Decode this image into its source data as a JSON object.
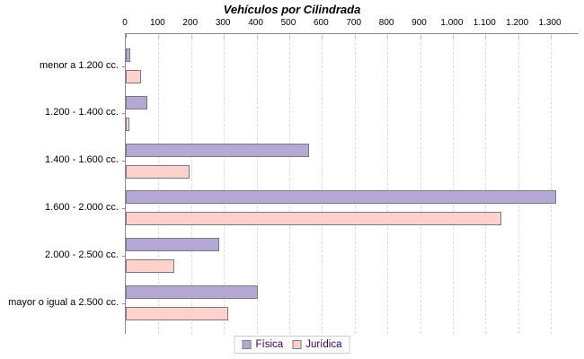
{
  "title": "Vehículos por Cilindrada",
  "chart_data": {
    "type": "bar",
    "orientation": "horizontal",
    "title": "Vehículos por Cilindrada",
    "categories": [
      "menor a 1.200 cc.",
      "1.200 - 1.400 cc.",
      "1.400 - 1.600 cc.",
      "1.600 - 2.000 cc.",
      "2.000 - 2.500 cc.",
      "mayor o igual a 2.500 cc."
    ],
    "series": [
      {
        "name": "Física",
        "color": "#b3a9d4",
        "values": [
          15,
          65,
          560,
          1315,
          285,
          405
        ]
      },
      {
        "name": "Jurídica",
        "color": "#ffd1cc",
        "values": [
          48,
          12,
          195,
          1150,
          148,
          312
        ]
      }
    ],
    "x_tick_labels": [
      "0",
      "100",
      "200",
      "300",
      "400",
      "500",
      "600",
      "700",
      "800",
      "900",
      "1.000",
      "1.100",
      "1.200",
      "1.300"
    ],
    "x_tick_values": [
      0,
      100,
      200,
      300,
      400,
      500,
      600,
      700,
      800,
      900,
      1000,
      1100,
      1200,
      1300
    ],
    "xlim": [
      0,
      1385
    ],
    "grid": "vertical-dashed",
    "legend_position": "bottom-center",
    "bar_border_color": "#7a7a7a",
    "axis_color": "#8c8c8c",
    "gridline_color": "#d9d9d9",
    "legend_text_color": "#330066"
  }
}
